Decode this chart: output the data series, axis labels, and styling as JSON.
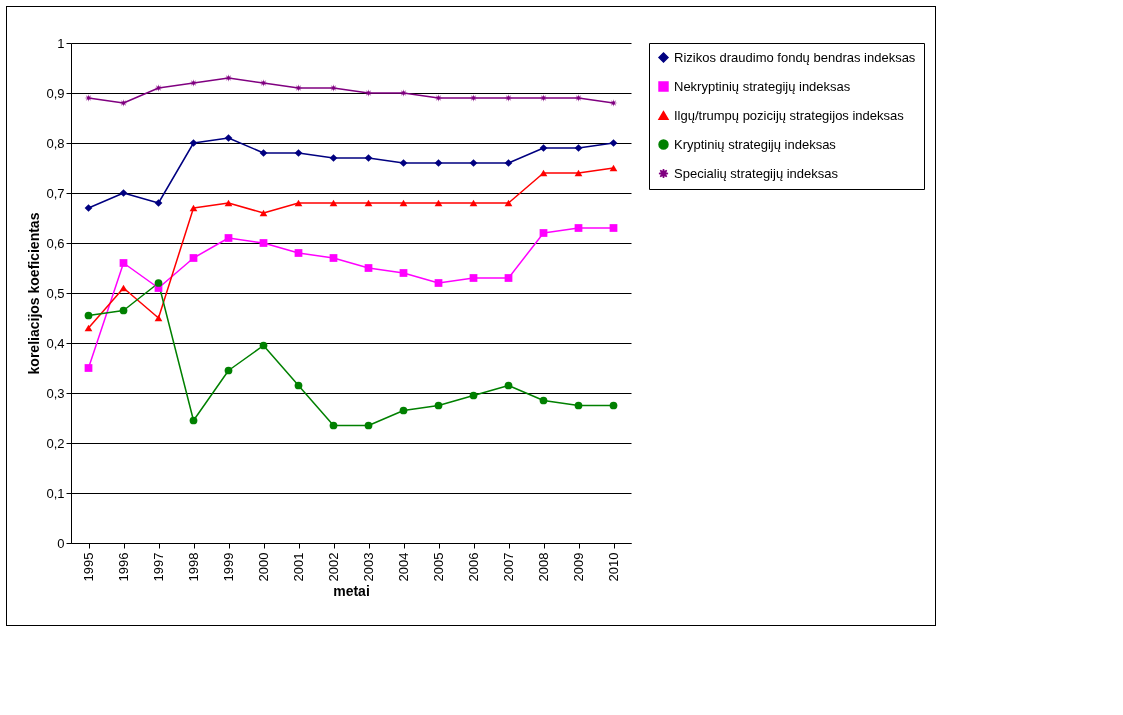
{
  "chart_data": {
    "type": "line",
    "xlabel": "metai",
    "ylabel": "koreliacijos koeficientas",
    "categories": [
      "1995",
      "1996",
      "1997",
      "1998",
      "1999",
      "2000",
      "2001",
      "2002",
      "2003",
      "2004",
      "2005",
      "2006",
      "2007",
      "2008",
      "2009",
      "2010"
    ],
    "series": [
      {
        "name": "Rizikos draudimo fondų bendras indeksas",
        "color": "#000080",
        "marker": "diamond",
        "values": [
          0.67,
          0.7,
          0.68,
          0.8,
          0.81,
          0.78,
          0.78,
          0.77,
          0.77,
          0.76,
          0.76,
          0.76,
          0.76,
          0.79,
          0.79,
          0.8
        ]
      },
      {
        "name": "Nekryptinių strategijų indeksas",
        "color": "#ff00ff",
        "marker": "square",
        "values": [
          0.35,
          0.56,
          0.51,
          0.57,
          0.61,
          0.6,
          0.58,
          0.57,
          0.55,
          0.54,
          0.52,
          0.53,
          0.53,
          0.62,
          0.63,
          0.63
        ]
      },
      {
        "name": "Ilgų/trumpų pozicijų strategijos indeksas",
        "color": "#ff0000",
        "marker": "triangle",
        "values": [
          0.43,
          0.51,
          0.45,
          0.67,
          0.68,
          0.66,
          0.68,
          0.68,
          0.68,
          0.68,
          0.68,
          0.68,
          0.68,
          0.74,
          0.74,
          0.75
        ]
      },
      {
        "name": "Kryptinių strategijų indeksas",
        "color": "#008000",
        "marker": "circle",
        "values": [
          0.455,
          0.465,
          0.52,
          0.245,
          0.345,
          0.395,
          0.315,
          0.235,
          0.235,
          0.265,
          0.275,
          0.295,
          0.315,
          0.285,
          0.275,
          0.275
        ]
      },
      {
        "name": "Specialių strategijų indeksas",
        "color": "#800080",
        "marker": "star",
        "values": [
          0.89,
          0.88,
          0.91,
          0.92,
          0.93,
          0.92,
          0.91,
          0.91,
          0.9,
          0.9,
          0.89,
          0.89,
          0.89,
          0.89,
          0.89,
          0.88
        ]
      }
    ],
    "ylim": [
      0,
      1
    ],
    "yticks": [
      0,
      {
        "value": 0.1,
        "label": "0,1"
      },
      {
        "value": 0.2,
        "label": "0,2"
      },
      {
        "value": 0.3,
        "label": "0,3"
      },
      {
        "value": 0.4,
        "label": "0,4"
      },
      {
        "value": 0.5,
        "label": "0,5"
      },
      {
        "value": 0.6,
        "label": "0,6"
      },
      {
        "value": 0.7,
        "label": "0,7"
      },
      {
        "value": 0.8,
        "label": "0,8"
      },
      {
        "value": 0.9,
        "label": "0,9"
      },
      1
    ],
    "grid": "y",
    "legend": "right",
    "line_style": "solid"
  }
}
